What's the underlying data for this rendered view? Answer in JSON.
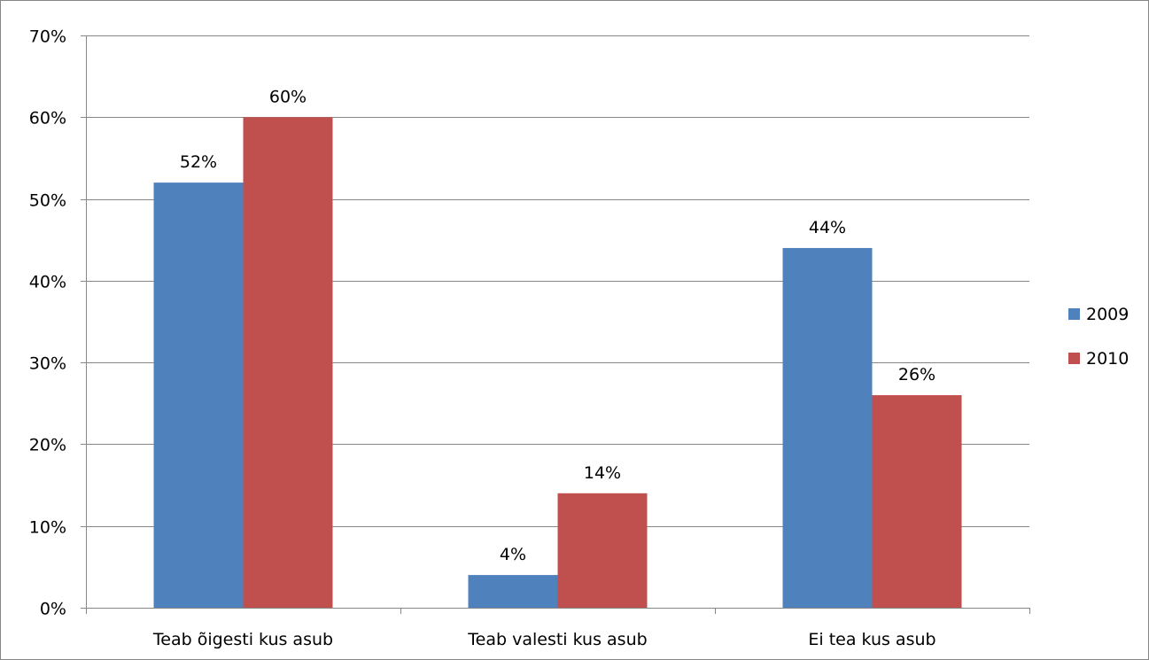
{
  "chart_data": {
    "type": "bar",
    "categories": [
      "Teab õigesti kus asub",
      "Teab valesti kus asub",
      "Ei tea kus asub"
    ],
    "series": [
      {
        "name": "2009",
        "values": [
          52,
          4,
          44
        ],
        "color": "#4F81BD"
      },
      {
        "name": "2010",
        "values": [
          60,
          14,
          26
        ],
        "color": "#C0504D"
      }
    ],
    "data_labels": [
      [
        "52%",
        "4%",
        "44%"
      ],
      [
        "60%",
        "14%",
        "26%"
      ]
    ],
    "yticks": [
      "0%",
      "10%",
      "20%",
      "30%",
      "40%",
      "50%",
      "60%",
      "70%"
    ],
    "ylim": [
      0,
      70
    ],
    "title": "",
    "xlabel": "",
    "ylabel": "",
    "grid": true,
    "legend_position": "right"
  }
}
